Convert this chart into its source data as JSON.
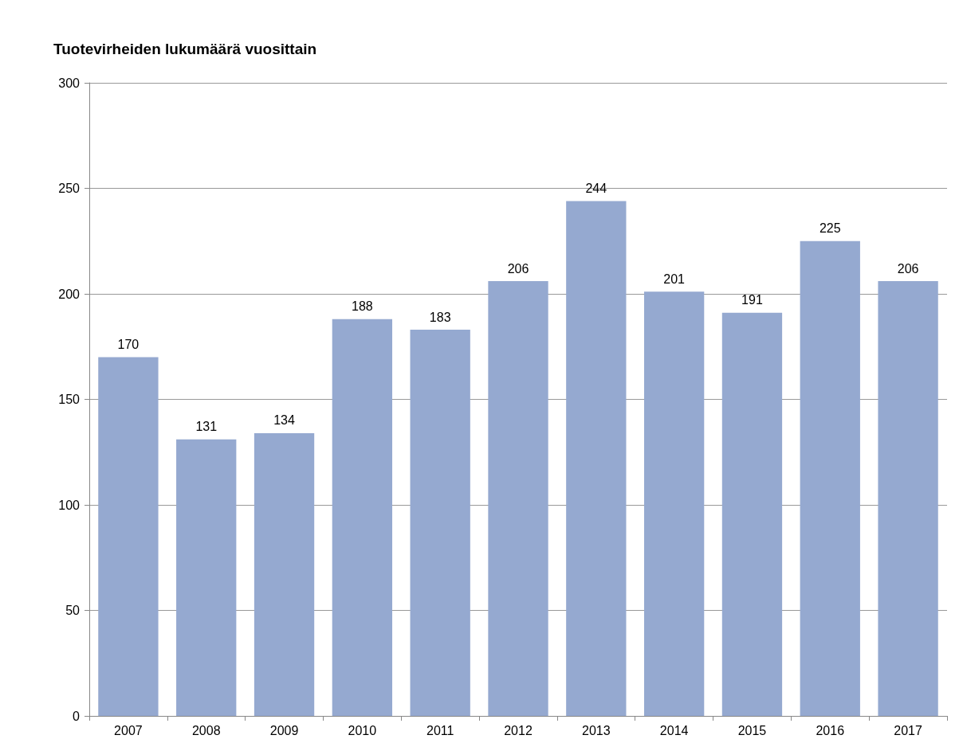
{
  "chart_data": {
    "type": "bar",
    "title": "Tuotevirheiden lukumäärä vuosittain",
    "categories": [
      "2007",
      "2008",
      "2009",
      "2010",
      "2011",
      "2012",
      "2013",
      "2014",
      "2015",
      "2016",
      "2017"
    ],
    "values": [
      170,
      131,
      134,
      188,
      183,
      206,
      244,
      201,
      191,
      225,
      206
    ],
    "color": "#95a9d0",
    "ylim": [
      0,
      300
    ],
    "yticks": [
      0,
      50,
      100,
      150,
      200,
      250,
      300
    ],
    "grid": "y",
    "data_labels": true
  }
}
